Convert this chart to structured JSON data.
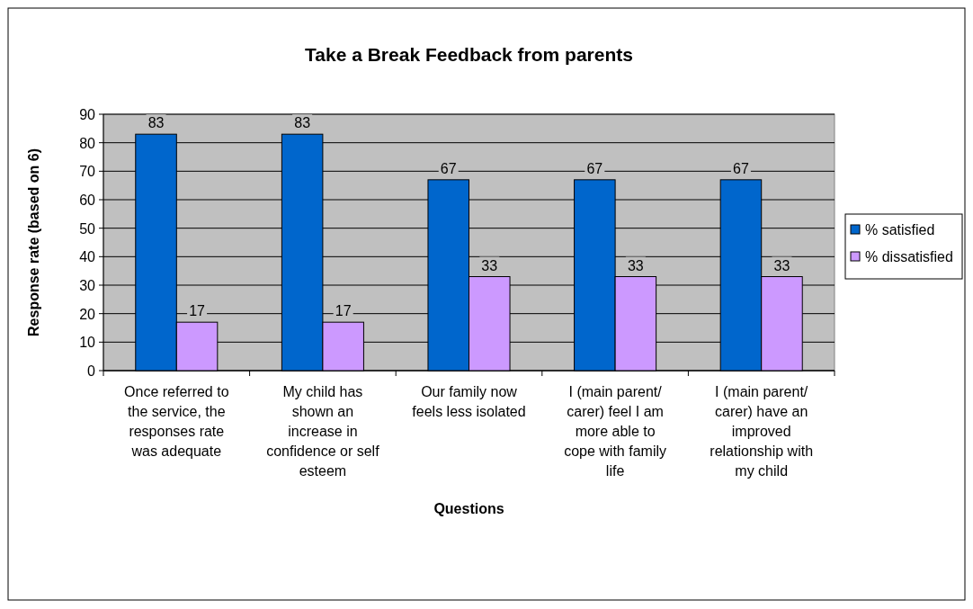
{
  "chart_data": {
    "type": "bar",
    "title": "Take a Break Feedback from parents",
    "xlabel": "Questions",
    "ylabel": "Response rate (based on 6)",
    "categories": [
      "Once referred to the service, the responses rate was adequate",
      "My child has shown an increase in confidence or self esteem",
      "Our family now feels less isolated",
      "I (main parent/ carer) feel I am more able to cope with family life",
      "I (main parent/ carer) have an improved relationship with my child"
    ],
    "series": [
      {
        "name": "% satisfied",
        "color": "#0066cc",
        "values": [
          83,
          83,
          67,
          67,
          67
        ]
      },
      {
        "name": "% dissatisfied",
        "color": "#cc99ff",
        "values": [
          17,
          17,
          33,
          33,
          33
        ]
      }
    ],
    "ylim": [
      0,
      90
    ],
    "yticks": [
      0,
      10,
      20,
      30,
      40,
      50,
      60,
      70,
      80,
      90
    ],
    "grid": "y",
    "legend": "right",
    "data_labels": true
  }
}
